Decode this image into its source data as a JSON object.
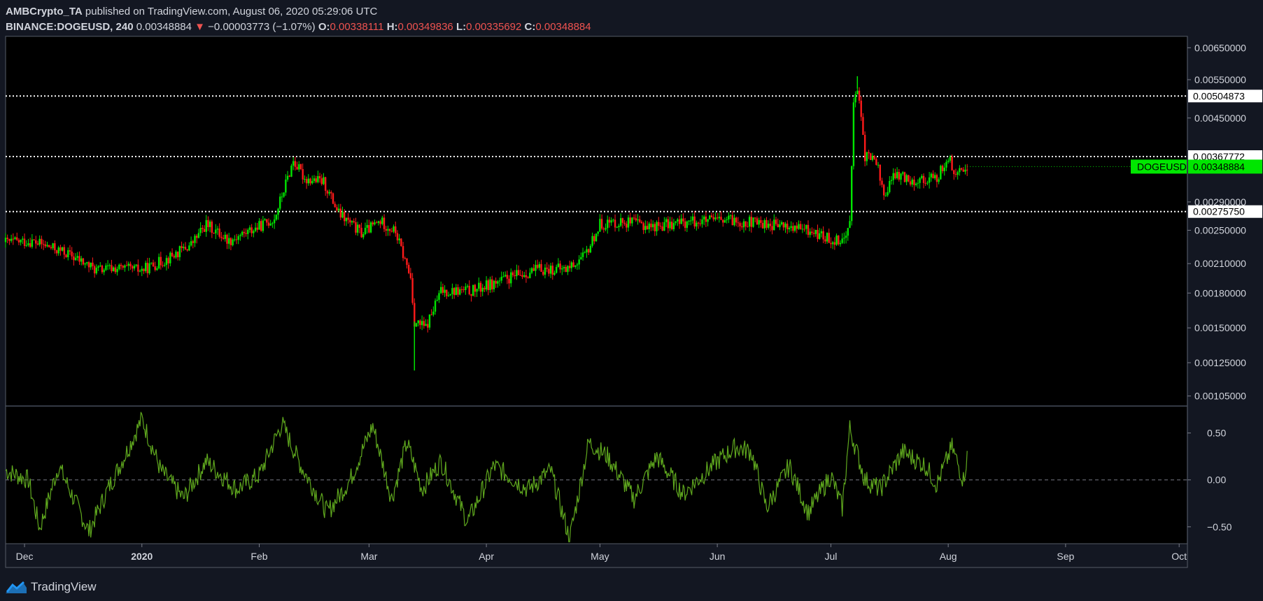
{
  "header": {
    "author": "AMBCrypto_TA",
    "published_text": "published on TradingView.com, August 06, 2020 05:29:06 UTC",
    "symbol": "BINANCE:DOGEUSD, 240",
    "last": "0.00348884",
    "change_arrow": "▼",
    "change": "−0.00003773 (−1.07%)",
    "o_label": "O:",
    "o_value": "0.00338111",
    "h_label": "H:",
    "h_value": "0.00349836",
    "l_label": "L:",
    "l_value": "0.00335692",
    "c_label": "C:",
    "c_value": "0.00348884"
  },
  "footer": {
    "brand": "TradingView",
    "logo_icon": "tradingview-logo-icon"
  },
  "colors": {
    "background": "#131722",
    "plot_background": "#000000",
    "up": "#00e600",
    "down": "#ff1a1a",
    "oscillator": "#5fa81e",
    "last_price_badge": "#00e600"
  },
  "chart_data": [
    {
      "type": "candlestick",
      "symbol": "DOGEUSD",
      "x_range": [
        "2019-11-26",
        "2020-10-03"
      ],
      "xticks": [
        {
          "date": "2019-12-01",
          "label": "Dec"
        },
        {
          "date": "2020-01-01",
          "label": "2020",
          "bold": true
        },
        {
          "date": "2020-02-01",
          "label": "Feb"
        },
        {
          "date": "2020-03-01",
          "label": "Mar"
        },
        {
          "date": "2020-04-01",
          "label": "Apr"
        },
        {
          "date": "2020-05-01",
          "label": "May"
        },
        {
          "date": "2020-06-01",
          "label": "Jun"
        },
        {
          "date": "2020-07-01",
          "label": "Jul"
        },
        {
          "date": "2020-08-01",
          "label": "Aug"
        },
        {
          "date": "2020-09-01",
          "label": "Sep"
        },
        {
          "date": "2020-10-01",
          "label": "Oct"
        }
      ],
      "y_scale": "log",
      "y_range": [
        0.001,
        0.0069
      ],
      "yticks": [
        "0.00650000",
        "0.00550000",
        "0.00450000",
        "0.00290000",
        "0.00250000",
        "0.00210000",
        "0.00180000",
        "0.00150000",
        "0.00125000",
        "0.00105000"
      ],
      "horizontal_lines": [
        {
          "value": 0.00504873,
          "label": "0.00504873",
          "style": "dotted"
        },
        {
          "value": 0.00367772,
          "label": "0.00367772",
          "style": "dotted"
        },
        {
          "value": 0.0027575,
          "label": "0.00275750",
          "style": "dotted"
        }
      ],
      "last_price": {
        "value": 0.00348884,
        "symbol": "DOGEUSD",
        "label": "0.00348884"
      },
      "price_path": [
        {
          "date": "2019-11-26",
          "close": 0.00235
        },
        {
          "date": "2019-12-03",
          "close": 0.00236
        },
        {
          "date": "2019-12-12",
          "close": 0.00222
        },
        {
          "date": "2019-12-20",
          "close": 0.00203
        },
        {
          "date": "2019-12-25",
          "close": 0.00205
        },
        {
          "date": "2020-01-01",
          "close": 0.00203
        },
        {
          "date": "2020-01-08",
          "close": 0.00216
        },
        {
          "date": "2020-01-14",
          "close": 0.00232
        },
        {
          "date": "2020-01-18",
          "close": 0.00258
        },
        {
          "date": "2020-01-24",
          "close": 0.00237
        },
        {
          "date": "2020-02-01",
          "close": 0.00255
        },
        {
          "date": "2020-02-05",
          "close": 0.00266
        },
        {
          "date": "2020-02-10",
          "close": 0.0036
        },
        {
          "date": "2020-02-13",
          "close": 0.00328
        },
        {
          "date": "2020-02-18",
          "close": 0.00322
        },
        {
          "date": "2020-02-22",
          "close": 0.00273
        },
        {
          "date": "2020-02-28",
          "close": 0.00246
        },
        {
          "date": "2020-03-04",
          "close": 0.00262
        },
        {
          "date": "2020-03-08",
          "close": 0.00248
        },
        {
          "date": "2020-03-12",
          "close": 0.00195
        },
        {
          "date": "2020-03-13",
          "close": 0.00155
        },
        {
          "date": "2020-03-16",
          "close": 0.0015
        },
        {
          "date": "2020-03-20",
          "close": 0.00182
        },
        {
          "date": "2020-03-28",
          "close": 0.00182
        },
        {
          "date": "2020-04-08",
          "close": 0.00196
        },
        {
          "date": "2020-04-15",
          "close": 0.00204
        },
        {
          "date": "2020-04-22",
          "close": 0.00204
        },
        {
          "date": "2020-04-27",
          "close": 0.00218
        },
        {
          "date": "2020-05-01",
          "close": 0.00258
        },
        {
          "date": "2020-05-07",
          "close": 0.00262
        },
        {
          "date": "2020-05-15",
          "close": 0.00255
        },
        {
          "date": "2020-05-25",
          "close": 0.00262
        },
        {
          "date": "2020-06-05",
          "close": 0.00263
        },
        {
          "date": "2020-06-15",
          "close": 0.00258
        },
        {
          "date": "2020-06-25",
          "close": 0.0025
        },
        {
          "date": "2020-07-01",
          "close": 0.00238
        },
        {
          "date": "2020-07-05",
          "close": 0.0024
        },
        {
          "date": "2020-07-06",
          "close": 0.0027
        },
        {
          "date": "2020-07-07",
          "close": 0.0048
        },
        {
          "date": "2020-07-08",
          "close": 0.00525
        },
        {
          "date": "2020-07-10",
          "close": 0.0037
        },
        {
          "date": "2020-07-13",
          "close": 0.0036
        },
        {
          "date": "2020-07-15",
          "close": 0.003
        },
        {
          "date": "2020-07-18",
          "close": 0.00335
        },
        {
          "date": "2020-07-23",
          "close": 0.00325
        },
        {
          "date": "2020-07-29",
          "close": 0.00328
        },
        {
          "date": "2020-08-01",
          "close": 0.00368
        },
        {
          "date": "2020-08-03",
          "close": 0.0033
        },
        {
          "date": "2020-08-06",
          "close": 0.00349
        }
      ],
      "price_extremes": [
        {
          "date": "2020-03-13",
          "low": 0.0012
        },
        {
          "date": "2020-07-08",
          "high": 0.0056
        }
      ]
    },
    {
      "type": "line",
      "name": "oscillator",
      "y_range": [
        -0.68,
        0.78
      ],
      "yticks": [
        "0.50",
        "0.00",
        "−0.50"
      ],
      "zero_line": "dashed",
      "path": [
        {
          "date": "2019-11-26",
          "v": 0.1
        },
        {
          "date": "2019-12-02",
          "v": 0.0
        },
        {
          "date": "2019-12-05",
          "v": -0.52
        },
        {
          "date": "2019-12-10",
          "v": 0.15
        },
        {
          "date": "2019-12-18",
          "v": -0.55
        },
        {
          "date": "2019-12-23",
          "v": -0.1
        },
        {
          "date": "2019-12-28",
          "v": 0.3
        },
        {
          "date": "2020-01-01",
          "v": 0.65
        },
        {
          "date": "2020-01-06",
          "v": 0.1
        },
        {
          "date": "2020-01-12",
          "v": -0.2
        },
        {
          "date": "2020-01-18",
          "v": 0.2
        },
        {
          "date": "2020-01-26",
          "v": -0.1
        },
        {
          "date": "2020-02-01",
          "v": 0.05
        },
        {
          "date": "2020-02-07",
          "v": 0.6
        },
        {
          "date": "2020-02-12",
          "v": 0.15
        },
        {
          "date": "2020-02-19",
          "v": -0.35
        },
        {
          "date": "2020-02-25",
          "v": 0.0
        },
        {
          "date": "2020-03-02",
          "v": 0.58
        },
        {
          "date": "2020-03-07",
          "v": -0.2
        },
        {
          "date": "2020-03-11",
          "v": 0.4
        },
        {
          "date": "2020-03-15",
          "v": -0.1
        },
        {
          "date": "2020-03-20",
          "v": 0.2
        },
        {
          "date": "2020-03-27",
          "v": -0.45
        },
        {
          "date": "2020-04-03",
          "v": 0.15
        },
        {
          "date": "2020-04-12",
          "v": -0.1
        },
        {
          "date": "2020-04-18",
          "v": 0.1
        },
        {
          "date": "2020-04-23",
          "v": -0.63
        },
        {
          "date": "2020-04-28",
          "v": 0.4
        },
        {
          "date": "2020-05-03",
          "v": 0.25
        },
        {
          "date": "2020-05-10",
          "v": -0.2
        },
        {
          "date": "2020-05-16",
          "v": 0.25
        },
        {
          "date": "2020-05-23",
          "v": -0.15
        },
        {
          "date": "2020-06-01",
          "v": 0.2
        },
        {
          "date": "2020-06-06",
          "v": 0.35
        },
        {
          "date": "2020-06-10",
          "v": 0.3
        },
        {
          "date": "2020-06-14",
          "v": -0.3
        },
        {
          "date": "2020-06-20",
          "v": 0.15
        },
        {
          "date": "2020-06-25",
          "v": -0.35
        },
        {
          "date": "2020-07-01",
          "v": 0.05
        },
        {
          "date": "2020-07-04",
          "v": -0.3
        },
        {
          "date": "2020-07-06",
          "v": 0.55
        },
        {
          "date": "2020-07-10",
          "v": 0.0
        },
        {
          "date": "2020-07-14",
          "v": -0.1
        },
        {
          "date": "2020-07-20",
          "v": 0.3
        },
        {
          "date": "2020-07-26",
          "v": 0.15
        },
        {
          "date": "2020-07-29",
          "v": -0.05
        },
        {
          "date": "2020-08-02",
          "v": 0.35
        },
        {
          "date": "2020-08-05",
          "v": 0.0
        },
        {
          "date": "2020-08-06",
          "v": 0.25
        }
      ]
    }
  ]
}
